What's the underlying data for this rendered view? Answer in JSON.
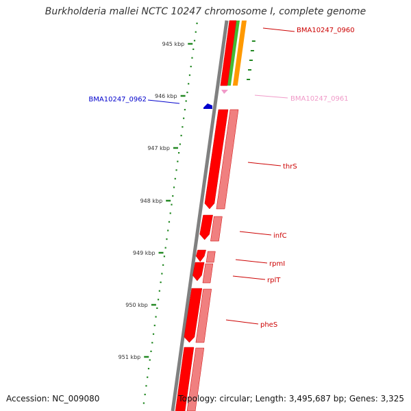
{
  "title": "Burkholderia mallei NCTC 10247 chromosome I, complete genome",
  "accession_text": "Accession: NC_009080",
  "summary_text": "Topology: circular; Length: 3,495,687 bp; Genes: 3,325",
  "colors": {
    "gene_red": "#ff0000",
    "gene_pink": "#f08080",
    "gene_blue": "#0000cc",
    "gene_light_pink": "#f099c8",
    "green_track": "#44bb33",
    "orange_track": "#ff9900",
    "backbone": "#808080",
    "tick_green": "#228822"
  },
  "kbp_ticks": [
    {
      "label": "945 kbp",
      "kb": 945
    },
    {
      "label": "946 kbp",
      "kb": 946
    },
    {
      "label": "947 kbp",
      "kb": 947
    },
    {
      "label": "948 kbp",
      "kb": 948
    },
    {
      "label": "949 kbp",
      "kb": 949
    },
    {
      "label": "950 kbp",
      "kb": 950
    },
    {
      "label": "951 kbp",
      "kb": 951
    }
  ],
  "genes": [
    {
      "name": "BMA10247_0960",
      "color": "#cc0000"
    },
    {
      "name": "BMA10247_0961",
      "color": "#f099c8"
    },
    {
      "name": "BMA10247_0962",
      "color": "#0000cc"
    },
    {
      "name": "thrS",
      "color": "#cc0000"
    },
    {
      "name": "infC",
      "color": "#cc0000"
    },
    {
      "name": "rpmI",
      "color": "#cc0000"
    },
    {
      "name": "rplT",
      "color": "#cc0000"
    },
    {
      "name": "pheS",
      "color": "#cc0000"
    }
  ]
}
